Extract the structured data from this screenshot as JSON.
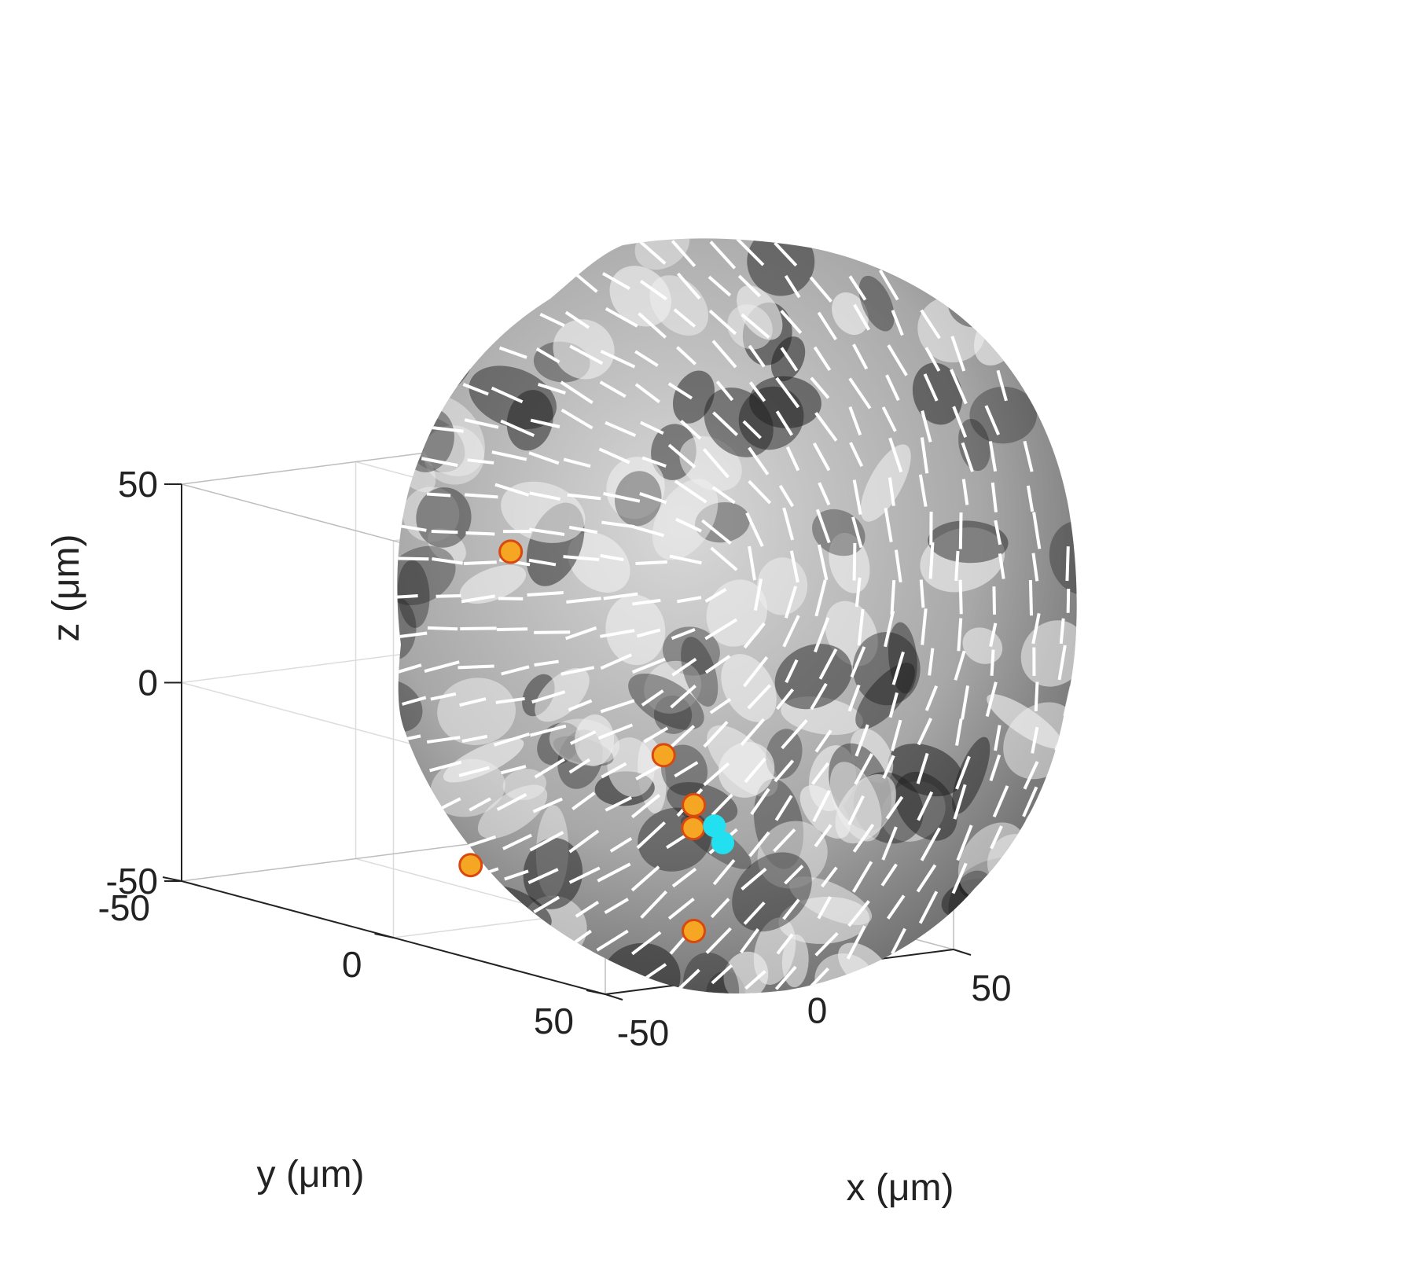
{
  "chart_data": {
    "type": "scatter",
    "projection": "3d-box",
    "xlabel": "x (μm)",
    "ylabel": "y (μm)",
    "zlabel": "z (μm)",
    "xlim": [
      -50,
      50
    ],
    "ylim": [
      -50,
      50
    ],
    "zlim": [
      -50,
      50
    ],
    "x_ticks": [
      "-50",
      "0",
      "50"
    ],
    "y_ticks": [
      "-50",
      "0",
      "50"
    ],
    "z_ticks": [
      "-50",
      "0",
      "50"
    ],
    "grid": true,
    "surface": "grayscale textured sphere (radius ≈ 42 μm) with white director segments",
    "series": [
      {
        "marker_color": "#f5a623",
        "edge_color": "#d9480f",
        "points": [
          {
            "x": 8,
            "y": -20,
            "z": 35
          },
          {
            "x": -15,
            "y": 35,
            "z": 2
          },
          {
            "x": 18,
            "y": 15,
            "z": -20
          },
          {
            "x": -10,
            "y": 38,
            "z": -42
          },
          {
            "x": 30,
            "y": 5,
            "z": -30
          },
          {
            "x": -40,
            "y": 10,
            "z": -30
          }
        ]
      },
      {
        "marker_color": "#22e0f0",
        "edge_color": "#22e0f0",
        "points": [
          {
            "x": 2,
            "y": 35,
            "z": -22
          },
          {
            "x": 30,
            "y": 10,
            "z": -28
          }
        ]
      }
    ]
  }
}
